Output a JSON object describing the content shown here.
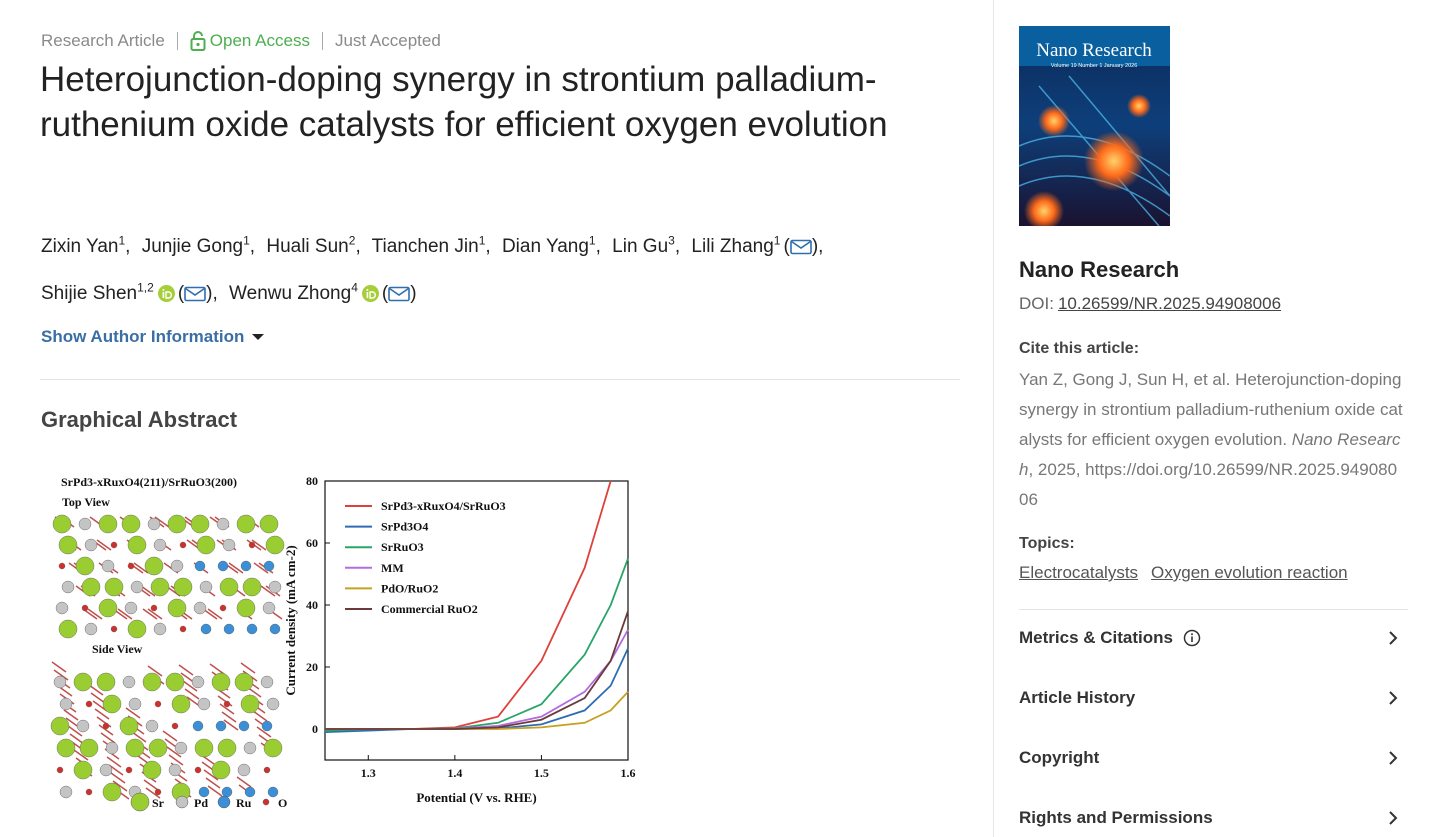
{
  "header": {
    "article_type": "Research Article",
    "access": "Open Access",
    "status": "Just Accepted"
  },
  "title": "Heterojunction-doping synergy in strontium palladium-ruthenium oxide catalysts for efficient oxygen evolution",
  "authors": [
    {
      "name": "Zixin Yan",
      "affiliation": "1"
    },
    {
      "name": "Junjie Gong",
      "affiliation": "1"
    },
    {
      "name": "Huali Sun",
      "affiliation": "2"
    },
    {
      "name": "Tianchen Jin",
      "affiliation": "1"
    },
    {
      "name": "Dian Yang",
      "affiliation": "1"
    },
    {
      "name": "Lin Gu",
      "affiliation": "3"
    },
    {
      "name": "Lili Zhang",
      "affiliation": "1",
      "email": true
    },
    {
      "name": "Shijie Shen",
      "affiliation": "1,2",
      "orcid": true,
      "email": true
    },
    {
      "name": "Wenwu Zhong",
      "affiliation": "4",
      "orcid": true,
      "email": true
    }
  ],
  "author_info_toggle": "Show Author Information",
  "graphical_abstract": {
    "heading": "Graphical Abstract",
    "structure": {
      "title": "SrPd3-xRuxO4(211)/SrRuO3(200)",
      "top_view": "Top View",
      "side_view": "Side View",
      "legend": [
        {
          "label": "Sr",
          "color": "#9acd32"
        },
        {
          "label": "Pd",
          "color": "#c4c4c4"
        },
        {
          "label": "Ru",
          "color": "#3a8fd6"
        },
        {
          "label": "O",
          "color": "#d0302c"
        }
      ]
    },
    "chart_data": {
      "type": "line",
      "x_label": "Potential (V vs. RHE)",
      "y_label": "Current density (mA cm-2)",
      "x": [
        1.25,
        1.3,
        1.35,
        1.4,
        1.45,
        1.5,
        1.55,
        1.58,
        1.6
      ],
      "xlim": [
        1.25,
        1.6
      ],
      "xticks": [
        1.3,
        1.4,
        1.5,
        1.6
      ],
      "ylim": [
        -10,
        80
      ],
      "yticks": [
        0,
        20,
        40,
        60,
        80
      ],
      "series": [
        {
          "name": "SrPd3-xRuxO4/SrRuO3",
          "color": "#e0403a",
          "values": [
            -0.5,
            0,
            0,
            0.5,
            4,
            22,
            52,
            80,
            null
          ]
        },
        {
          "name": "SrPd3O4",
          "color": "#2e6db3",
          "values": [
            -1,
            -0.5,
            0,
            0,
            0.2,
            1.5,
            6,
            14,
            26
          ]
        },
        {
          "name": "SrRuO3",
          "color": "#2aa56a",
          "values": [
            -0.5,
            0,
            0,
            0.2,
            2,
            8,
            24,
            40,
            55
          ]
        },
        {
          "name": "MM",
          "color": "#b56be0",
          "values": [
            0,
            0,
            0,
            0.1,
            1,
            4,
            12,
            22,
            32
          ]
        },
        {
          "name": "PdO/RuO2",
          "color": "#c8a020",
          "values": [
            0,
            0,
            0,
            0,
            0,
            0.5,
            2,
            6,
            12
          ]
        },
        {
          "name": "Commercial RuO2",
          "color": "#6b3a3a",
          "values": [
            0,
            0,
            0,
            0,
            0.5,
            3,
            10,
            22,
            38
          ]
        }
      ]
    }
  },
  "sidebar": {
    "cover": {
      "title": "Nano Research",
      "issue": "Volume 19 Number 1 January 2026"
    },
    "journal": "Nano Research",
    "doi_label": "DOI:",
    "doi": "10.26599/NR.2025.94908006",
    "cite_heading": "Cite this article:",
    "citation": {
      "before": "Yan Z, Gong J, Sun H, et al. Heterojunction-doping synergy in strontium palladium-ruthenium oxide catalysts for efficient oxygen evolution.",
      "journal": "Nano Research",
      "after": ", 2025, https://doi.org/10.26599/NR.2025.94908006"
    },
    "topics_heading": "Topics:",
    "topics": [
      "Electrocatalysts",
      "Oxygen evolution reaction"
    ],
    "sections": [
      "Metrics & Citations",
      "Article History",
      "Copyright",
      "Rights and Permissions"
    ]
  }
}
